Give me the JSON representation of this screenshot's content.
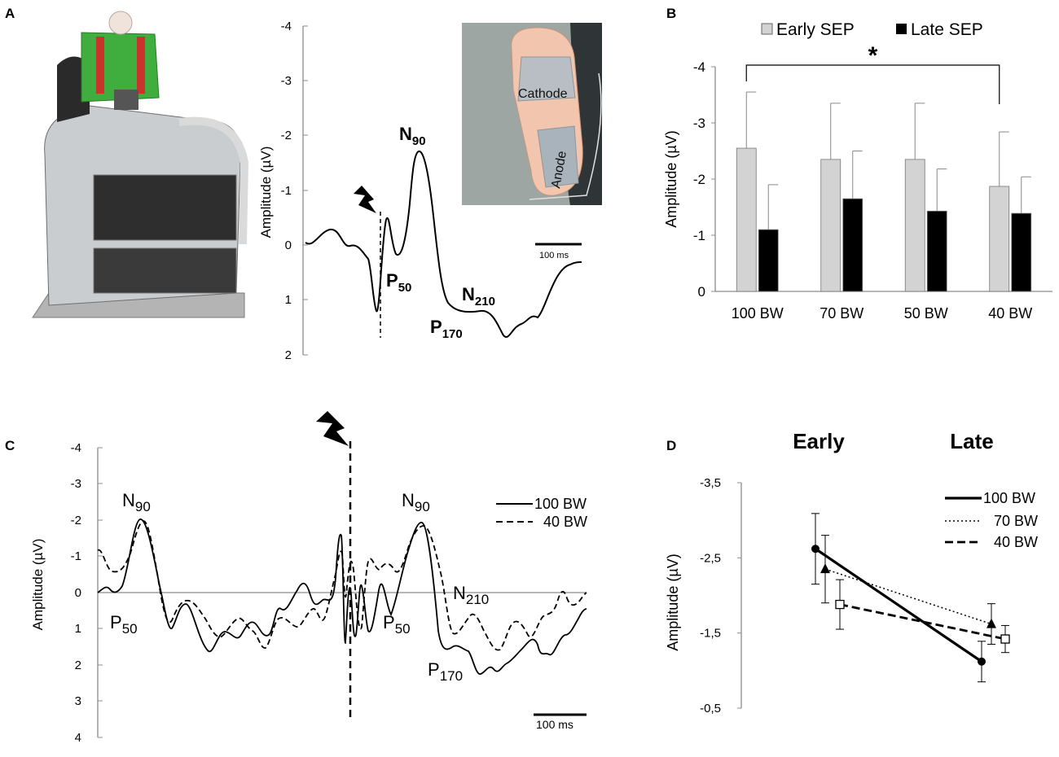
{
  "panels": {
    "a": "A",
    "b": "B",
    "c": "C",
    "d": "D"
  },
  "colors": {
    "early": "#d3d3d3",
    "late": "#000000",
    "ink": "#000000",
    "axis": "#8c8c8c"
  },
  "icons": {
    "stimulus": "lightning-bolt-icon"
  },
  "panel_a": {
    "photo_subject": "harness-treadmill-photo",
    "photo_foot": "foot-electrodes-photo",
    "foot_labels": {
      "cathode": "Cathode",
      "anode": "Anode"
    },
    "ylabel": "Amplitude (µV)",
    "yticks": [
      "-4",
      "-3",
      "-2",
      "-1",
      "0",
      "1",
      "2"
    ],
    "scale_bar": "100 ms",
    "peaks": {
      "n90": {
        "main": "N",
        "sub": "90"
      },
      "p50": {
        "main": "P",
        "sub": "50"
      },
      "n210": {
        "main": "N",
        "sub": "210"
      },
      "p170": {
        "main": "P",
        "sub": "170"
      }
    }
  },
  "panel_c": {
    "ylabel": "Amplitude (µV)",
    "yticks": [
      "-4",
      "-3",
      "-2",
      "-1",
      "0",
      "1",
      "2",
      "3",
      "4"
    ],
    "scale_bar": "100 ms",
    "legend": [
      {
        "label": "100 BW",
        "style": "solid"
      },
      {
        "label": "40 BW",
        "style": "dashed"
      }
    ],
    "peaks": {
      "n90_left": {
        "main": "N",
        "sub": "90"
      },
      "p50_left": {
        "main": "P",
        "sub": "50"
      },
      "n90_right": {
        "main": "N",
        "sub": "90"
      },
      "p50_right": {
        "main": "P",
        "sub": "50"
      },
      "n210": {
        "main": "N",
        "sub": "210"
      },
      "p170": {
        "main": "P",
        "sub": "170"
      }
    }
  },
  "chart_data": [
    {
      "id": "B",
      "type": "bar",
      "title": "",
      "xlabel": "",
      "ylabel": "Amplitude (µV)",
      "ylim": [
        0,
        -4
      ],
      "yticks": [
        "0",
        "-1",
        "-2",
        "-3",
        "-4"
      ],
      "categories": [
        "100 BW",
        "70 BW",
        "50 BW",
        "40 BW"
      ],
      "series": [
        {
          "name": "Early SEP",
          "values": [
            -2.55,
            -2.35,
            -2.35,
            -1.87
          ],
          "errors": [
            1.0,
            1.0,
            1.0,
            0.97
          ]
        },
        {
          "name": "Late SEP",
          "values": [
            -1.1,
            -1.65,
            -1.43,
            -1.39
          ],
          "errors": [
            0.8,
            0.85,
            0.75,
            0.65
          ]
        }
      ],
      "significance": {
        "label": "*",
        "between": [
          "100 BW",
          "40 BW"
        ]
      }
    },
    {
      "id": "D",
      "type": "line",
      "title": "",
      "xlabel": "",
      "ylabel": "Amplitude (µV)",
      "ylim": [
        -0.5,
        -3.5
      ],
      "yticks": [
        "-3,5",
        "-2,5",
        "-1,5",
        "-0,5"
      ],
      "categories": [
        "Early",
        "Late"
      ],
      "series": [
        {
          "name": "100 BW",
          "style": "solid",
          "marker": "circle",
          "values": [
            -2.62,
            -1.12
          ],
          "errors": [
            0.47,
            0.27
          ]
        },
        {
          "name": "70 BW",
          "style": "dotted",
          "marker": "triangle",
          "values": [
            -2.35,
            -1.62
          ],
          "errors": [
            0.45,
            0.27
          ]
        },
        {
          "name": "40 BW",
          "style": "dashed",
          "marker": "square",
          "values": [
            -1.88,
            -1.42
          ],
          "errors": [
            0.33,
            0.18
          ]
        }
      ]
    }
  ]
}
